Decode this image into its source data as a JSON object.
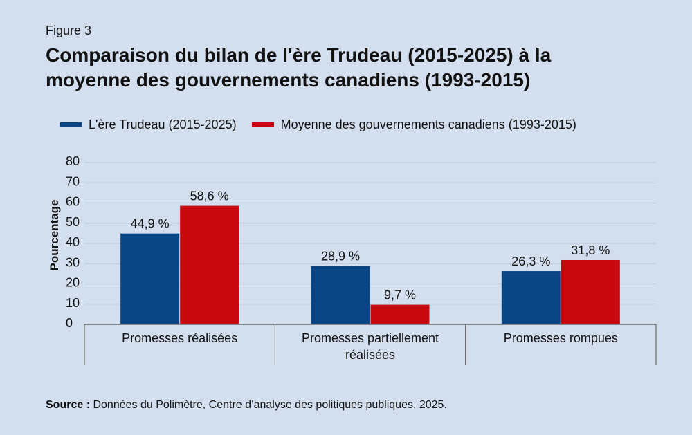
{
  "figure_label": "Figure 3",
  "title_line1": "Comparaison du bilan de l'ère Trudeau (2015-2025) à la",
  "title_line2": "moyenne des gouvernements canadiens (1993-2015)",
  "source_label": "Source :",
  "source_text": " Données du Polimètre, Centre d’analyse des politiques publiques, 2025.",
  "colors": {
    "background": "#d3deef",
    "series1": "#0a4585",
    "series2": "#c8080e",
    "grid": "#b9c6da",
    "axis": "#555555"
  },
  "chart_data": {
    "type": "bar",
    "title": "Comparaison du bilan de l'ère Trudeau (2015-2025) à la moyenne des gouvernements canadiens (1993-2015)",
    "ylabel": "Pourcentage",
    "xlabel": "",
    "ylim": [
      0,
      80
    ],
    "yticks": [
      0,
      10,
      20,
      30,
      40,
      50,
      60,
      70,
      80
    ],
    "grid": true,
    "legend_position": "top",
    "categories": [
      [
        "Promesses réalisées"
      ],
      [
        "Promesses partiellement",
        "réalisées"
      ],
      [
        "Promesses rompues"
      ]
    ],
    "series": [
      {
        "name": "L'ère Trudeau (2015-2025)",
        "color": "#0a4585",
        "values": [
          44.9,
          28.9,
          26.3
        ],
        "labels": [
          "44,9 %",
          "28,9 %",
          "26,3 %"
        ]
      },
      {
        "name": "Moyenne des gouvernements canadiens (1993-2015)",
        "color": "#c8080e",
        "values": [
          58.6,
          9.7,
          31.8
        ],
        "labels": [
          "58,6 %",
          "9,7 %",
          "31,8 %"
        ]
      }
    ]
  }
}
